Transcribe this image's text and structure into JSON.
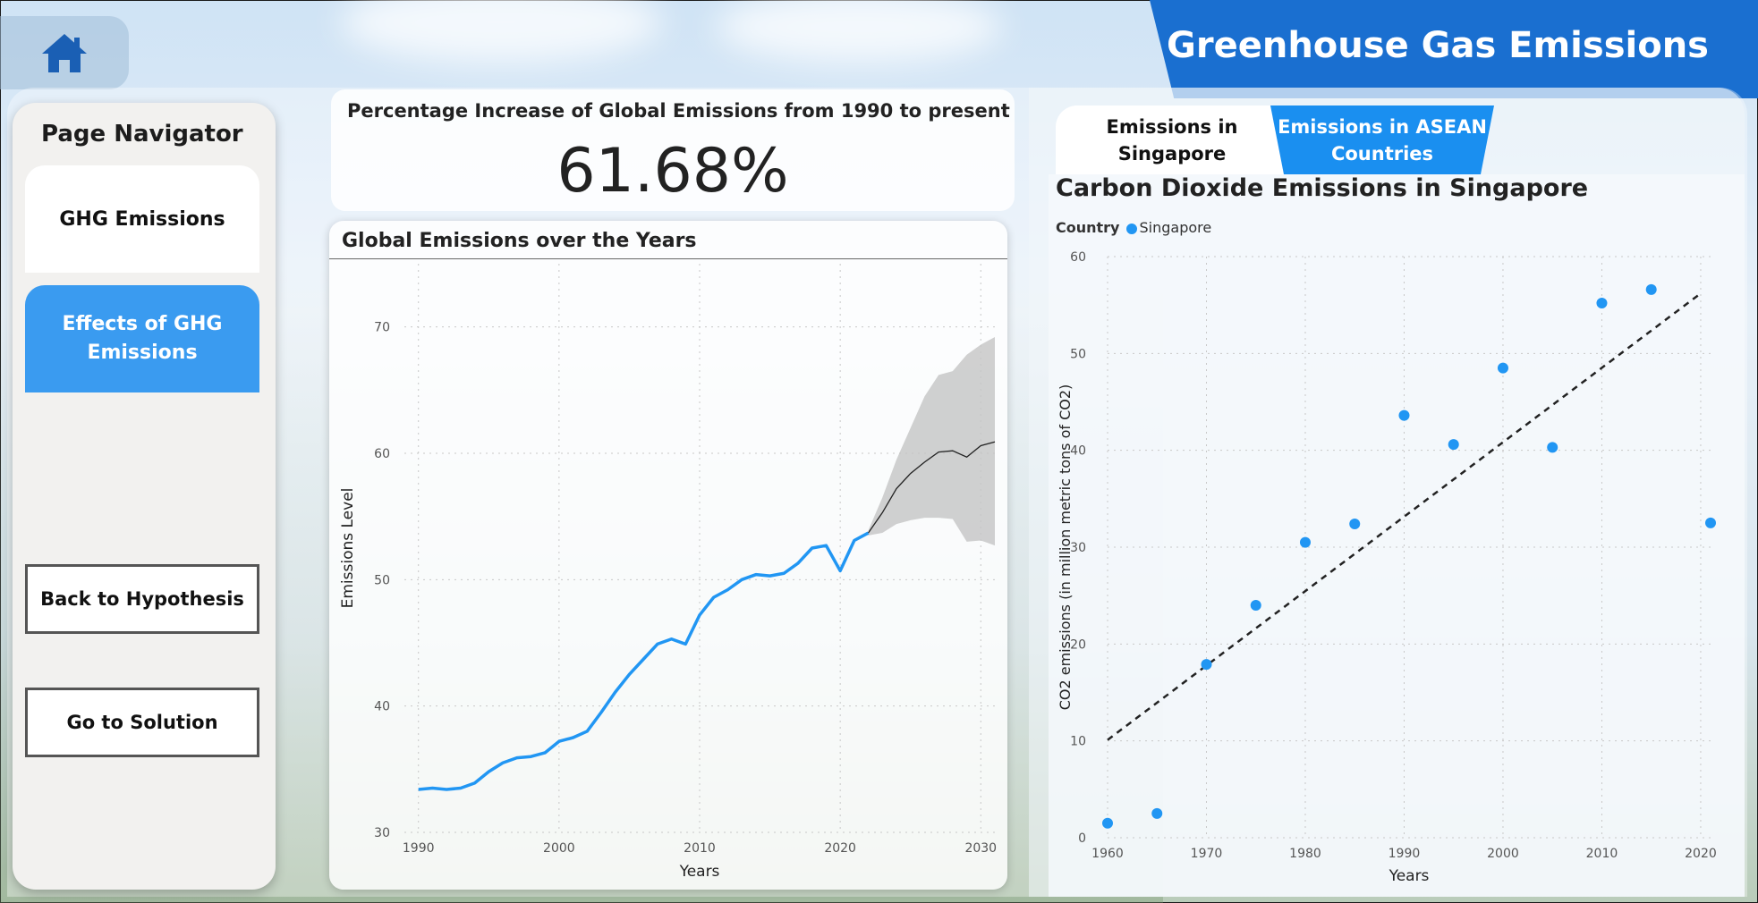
{
  "header": {
    "title": "Greenhouse Gas Emissions"
  },
  "nav": {
    "title": "Page Navigator",
    "items": [
      {
        "label": "GHG Emissions"
      },
      {
        "label": "Effects of GHG Emissions"
      }
    ],
    "buttons": [
      {
        "label": "Back to Hypothesis"
      },
      {
        "label": "Go to Solution"
      }
    ]
  },
  "kpi": {
    "title": "Percentage Increase of Global Emissions from 1990 to present",
    "value": "61.68%"
  },
  "tabs": [
    {
      "label": "Emissions in Singapore",
      "active": true
    },
    {
      "label": "Emissions in ASEAN Countries",
      "active": false
    }
  ],
  "colors": {
    "accent": "#1a6fd0",
    "series": "#2196f3",
    "nav_active": "#3a9bf0"
  },
  "chart_data": [
    {
      "type": "line",
      "title": "Global Emissions over the Years",
      "xlabel": "Years",
      "ylabel": "Emissions Level",
      "xlim": [
        1989,
        2031
      ],
      "ylim": [
        30,
        75
      ],
      "xticks": [
        1990,
        2000,
        2010,
        2020,
        2030
      ],
      "yticks": [
        30,
        40,
        50,
        60,
        70
      ],
      "grid": true,
      "series": [
        {
          "x": [
            1990,
            1991,
            1992,
            1993,
            1994,
            1995,
            1996,
            1997,
            1998,
            1999,
            2000,
            2001,
            2002,
            2003,
            2004,
            2005,
            2006,
            2007,
            2008,
            2009,
            2010,
            2011,
            2012,
            2013,
            2014,
            2015,
            2016,
            2017,
            2018,
            2019,
            2020,
            2021,
            2022
          ],
          "values": [
            33.4,
            33.5,
            33.4,
            33.5,
            33.9,
            34.8,
            35.5,
            35.9,
            36.0,
            36.3,
            37.2,
            37.5,
            38.0,
            39.5,
            41.1,
            42.5,
            43.7,
            44.9,
            45.3,
            44.9,
            47.2,
            48.6,
            49.2,
            50.0,
            50.4,
            50.3,
            50.5,
            51.3,
            52.5,
            52.7,
            50.7,
            53.1,
            53.7
          ]
        }
      ],
      "forecast": {
        "x": [
          2022,
          2023,
          2024,
          2025,
          2026,
          2027,
          2028,
          2029,
          2030,
          2031
        ],
        "values": [
          53.7,
          55.3,
          57.2,
          58.4,
          59.3,
          60.1,
          60.2,
          59.7,
          60.6,
          60.9
        ],
        "upper": [
          53.9,
          56.5,
          59.5,
          62.0,
          64.5,
          66.2,
          66.5,
          67.8,
          68.6,
          69.2
        ],
        "lower": [
          53.5,
          53.7,
          54.4,
          54.7,
          54.9,
          54.9,
          54.8,
          53.0,
          53.1,
          52.7
        ]
      }
    },
    {
      "type": "scatter",
      "title": "Carbon Dioxide Emissions in Singapore",
      "legend_title": "Country",
      "series_name": "Singapore",
      "xlabel": "Years",
      "ylabel": "CO2 emissions (in million metric tons of CO2)",
      "xlim": [
        1960,
        2021
      ],
      "ylim": [
        0,
        60
      ],
      "xticks": [
        1960,
        1970,
        1980,
        1990,
        2000,
        2010,
        2020
      ],
      "yticks": [
        0,
        10,
        20,
        30,
        40,
        50,
        60
      ],
      "grid": true,
      "points": [
        {
          "x": 1960,
          "y": 1.5
        },
        {
          "x": 1965,
          "y": 2.5
        },
        {
          "x": 1970,
          "y": 17.9
        },
        {
          "x": 1975,
          "y": 24.0
        },
        {
          "x": 1980,
          "y": 30.5
        },
        {
          "x": 1985,
          "y": 32.4
        },
        {
          "x": 1990,
          "y": 43.6
        },
        {
          "x": 1995,
          "y": 40.6
        },
        {
          "x": 2000,
          "y": 48.5
        },
        {
          "x": 2005,
          "y": 40.3
        },
        {
          "x": 2010,
          "y": 55.2
        },
        {
          "x": 2015,
          "y": 56.6
        },
        {
          "x": 2021,
          "y": 32.5
        }
      ],
      "trendline": {
        "x": [
          1960,
          2020
        ],
        "y": [
          10.1,
          56.2
        ]
      }
    }
  ]
}
